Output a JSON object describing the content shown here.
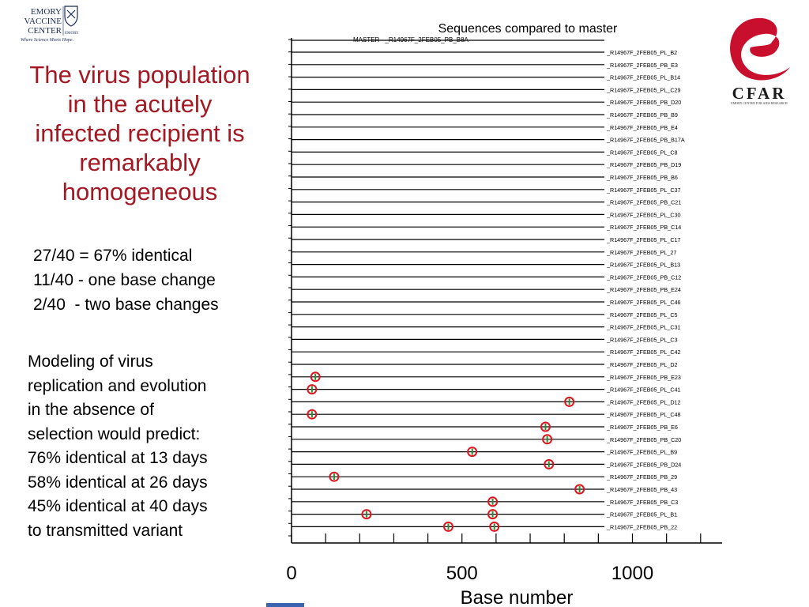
{
  "logos": {
    "emory": {
      "lines": [
        "EMORY",
        "VACCINE",
        "CENTER"
      ],
      "tagline": "Where Science Meets Hope.",
      "side_text": "EMORY",
      "color": "#1a2a5a"
    },
    "cfar": {
      "letters": "CFAR",
      "subtitle": "EMORY CENTER FOR AIDS RESEARCH",
      "accent": "#c8102e"
    }
  },
  "heading": {
    "lines": [
      "The virus population",
      "in the acutely",
      "infected recipient is",
      "remarkably",
      "homogeneous"
    ],
    "color": "#a31822"
  },
  "stats": [
    "27/40 = 67% identical",
    "11/40 - one base change",
    "2/40  - two base changes"
  ],
  "modeling": [
    "Modeling of virus",
    "replication and evolution",
    "in the absence of",
    "selection would predict:",
    "76% identical at 13 days",
    "58% identical at 26 days",
    "45% identical at 40 days",
    "to transmitted variant"
  ],
  "chart_data": {
    "type": "scatter",
    "title": "Sequences compared to master",
    "xlabel": "Base number",
    "ylabel": "",
    "xlim": [
      0,
      1250
    ],
    "xticks": [
      0,
      500,
      1000
    ],
    "master_label": "MASTER - _R14967F_2FEB05_PB_B8A",
    "sequences": [
      {
        "label": "_R14967F_2FEB05_PL_B2",
        "mutations": []
      },
      {
        "label": "_R14967F_2FEB05_PB_E3",
        "mutations": []
      },
      {
        "label": "_R14967F_2FEB05_PL_B14",
        "mutations": []
      },
      {
        "label": "_R14967F_2FEB05_PL_C29",
        "mutations": []
      },
      {
        "label": "_R14967F_2FEB05_PB_D20",
        "mutations": []
      },
      {
        "label": "_R14967F_2FEB05_PB_B9",
        "mutations": []
      },
      {
        "label": "_R14967F_2FEB05_PB_E4",
        "mutations": []
      },
      {
        "label": "_R14967F_2FEB05_PB_B17A",
        "mutations": []
      },
      {
        "label": "_R14967F_2FEB05_PL_C8",
        "mutations": []
      },
      {
        "label": "_R14967F_2FEB05_PB_D19",
        "mutations": []
      },
      {
        "label": "_R14967F_2FEB05_PB_B6",
        "mutations": []
      },
      {
        "label": "_R14967F_2FEB05_PL_C37",
        "mutations": []
      },
      {
        "label": "_R14967F_2FEB05_PB_C21",
        "mutations": []
      },
      {
        "label": "_R14967F_2FEB05_PL_C30",
        "mutations": []
      },
      {
        "label": "_R14967F_2FEB05_PB_C14",
        "mutations": []
      },
      {
        "label": "_R14967F_2FEB05_PL_C17",
        "mutations": []
      },
      {
        "label": "_R14967F_2FEB05_PL_27",
        "mutations": []
      },
      {
        "label": "_R14967F_2FEB05_PL_B13",
        "mutations": []
      },
      {
        "label": "_R14967F_2FEB05_PB_C12",
        "mutations": []
      },
      {
        "label": "_R14967F_2FEB05_PB_E24",
        "mutations": []
      },
      {
        "label": "_R14967F_2FEB05_PL_C46",
        "mutations": []
      },
      {
        "label": "_R14967F_2FEB05_PL_C5",
        "mutations": []
      },
      {
        "label": "_R14967F_2FEB05_PL_C31",
        "mutations": []
      },
      {
        "label": "_R14967F_2FEB05_PL_C3",
        "mutations": []
      },
      {
        "label": "_R14967F_2FEB05_PL_C42",
        "mutations": []
      },
      {
        "label": "_R14967F_2FEB05_PL_D2",
        "mutations": []
      },
      {
        "label": "_R14967F_2FEB05_PB_E23",
        "mutations": [
          70
        ]
      },
      {
        "label": "_R14967F_2FEB05_PL_C41",
        "mutations": [
          60
        ]
      },
      {
        "label": "_R14967F_2FEB05_PL_D12",
        "mutations": [
          815
        ]
      },
      {
        "label": "_R14967F_2FEB05_PL_C48",
        "mutations": [
          60
        ]
      },
      {
        "label": "_R14967F_2FEB05_PB_E6",
        "mutations": [
          745
        ]
      },
      {
        "label": "_R14967F_2FEB05_PB_C20",
        "mutations": [
          750
        ]
      },
      {
        "label": "_R14967F_2FEB05_PL_B9",
        "mutations": [
          530
        ]
      },
      {
        "label": "_R14967F_2FEB05_PB_D24",
        "mutations": [
          755
        ]
      },
      {
        "label": "_R14967F_2FEB05_PB_29",
        "mutations": [
          125
        ]
      },
      {
        "label": "_R14967F_2FEB05_PB_43",
        "mutations": [
          845
        ]
      },
      {
        "label": "_R14967F_2FEB05_PB_C3",
        "mutations": [
          590
        ]
      },
      {
        "label": "_R14967F_2FEB05_PL_B1",
        "mutations": [
          220,
          590
        ]
      },
      {
        "label": "_R14967F_2FEB05_PB_22",
        "mutations": [
          460,
          595
        ]
      }
    ],
    "colors": {
      "marker_ring": "#e0141e",
      "marker_center": "#2e8b2e",
      "line": "#000000"
    }
  }
}
